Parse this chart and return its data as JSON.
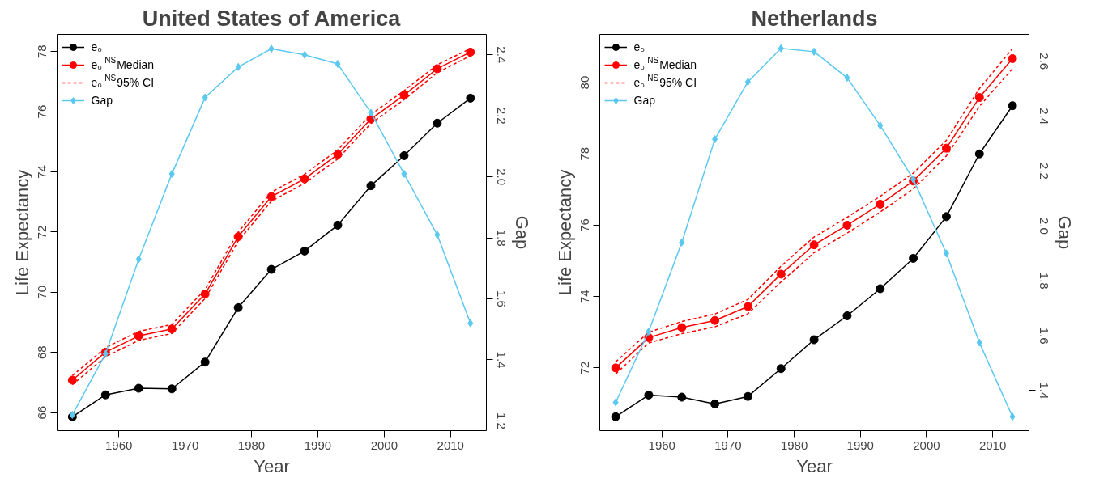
{
  "chart_data": [
    {
      "type": "line",
      "title": "United States of America",
      "xlabel": "Year",
      "ylabel": "Life Expectancy",
      "y2label": "Gap",
      "x": [
        1953,
        1958,
        1963,
        1968,
        1973,
        1978,
        1983,
        1988,
        1993,
        1998,
        2003,
        2008,
        2013
      ],
      "xlim": [
        1950.7,
        2015.4
      ],
      "xticks": [
        1960,
        1970,
        1980,
        1990,
        2000,
        2010
      ],
      "ylim": [
        65.4,
        78.57
      ],
      "yticks": [
        66,
        68,
        70,
        72,
        74,
        76,
        78
      ],
      "y2lim": [
        1.168,
        2.467
      ],
      "y2ticks": [
        {
          "value": 1.2,
          "label": "1.2"
        },
        {
          "value": 1.4,
          "label": "1.4"
        },
        {
          "value": 1.6,
          "label": "1.6"
        },
        {
          "value": 1.8,
          "label": "1.8"
        },
        {
          "value": 2.0,
          "label": "2.0"
        },
        {
          "value": 2.2,
          "label": "2.2"
        },
        {
          "value": 2.4,
          "label": "2.4"
        }
      ],
      "grid": false,
      "legend": "top left",
      "series": [
        {
          "name": "e₀",
          "color": "#000000",
          "marker": "circle",
          "line_style": "solid",
          "values": [
            65.86,
            66.59,
            66.81,
            66.79,
            67.68,
            69.49,
            70.76,
            71.37,
            72.23,
            73.54,
            74.54,
            75.62,
            76.45
          ]
        },
        {
          "name": "e₀$^{NS}$Median",
          "color": "#ff0000",
          "marker": "circle",
          "line_style": "solid",
          "values": [
            67.08,
            68.01,
            68.55,
            68.78,
            69.94,
            71.85,
            73.18,
            73.77,
            74.58,
            75.76,
            76.55,
            77.43,
            77.98
          ]
        },
        {
          "name": "e₀$^{NS}$95% CI",
          "color": "#ff0000",
          "marker": "none",
          "line_style": "dashed",
          "values": [
            66.93,
            67.86,
            68.4,
            68.63,
            69.79,
            71.7,
            73.03,
            73.62,
            74.43,
            75.61,
            76.4,
            77.3,
            77.86
          ]
        },
        {
          "color": "#ff0000",
          "marker": "none",
          "line_style": "dashed",
          "values": [
            67.23,
            68.16,
            68.7,
            68.93,
            70.09,
            72.0,
            73.33,
            73.92,
            74.73,
            75.91,
            76.7,
            77.56,
            78.1
          ]
        },
        {
          "name": "Gap",
          "color": "#5bc8f0",
          "marker": "diamond",
          "line_style": "solid",
          "axis": "y2",
          "values": [
            1.22,
            1.42,
            1.73,
            2.01,
            2.26,
            2.36,
            2.42,
            2.4,
            2.37,
            2.21,
            2.01,
            1.81,
            1.52
          ]
        }
      ]
    },
    {
      "type": "line",
      "title": "Netherlands",
      "xlabel": "Year",
      "ylabel": "Life Expectancy",
      "y2label": "Gap",
      "x": [
        1953,
        1958,
        1963,
        1968,
        1973,
        1978,
        1983,
        1988,
        1993,
        1998,
        2003,
        2008,
        2013
      ],
      "xlim": [
        1950.6,
        2015.5
      ],
      "xticks": [
        1960,
        1970,
        1980,
        1990,
        2000,
        2010
      ],
      "ylim": [
        70.24,
        81.35
      ],
      "yticks": [
        72,
        74,
        76,
        78,
        80
      ],
      "y2lim": [
        1.254,
        2.698
      ],
      "y2ticks": [
        1.4,
        1.6,
        1.8,
        {
          "value": 2.0,
          "label": "2.0"
        },
        2.2,
        2.4,
        2.6
      ],
      "grid": false,
      "legend": "top left",
      "series": [
        {
          "name": "e₀",
          "color": "#000000",
          "marker": "circle",
          "line_style": "solid",
          "values": [
            70.63,
            71.24,
            71.18,
            70.99,
            71.2,
            71.98,
            72.79,
            73.46,
            74.22,
            75.07,
            76.24,
            78.0,
            79.35
          ]
        },
        {
          "name": "e₀$^{NS}$Median",
          "color": "#ff0000",
          "marker": "circle",
          "line_style": "solid",
          "values": [
            72.0,
            72.85,
            73.13,
            73.33,
            73.72,
            74.63,
            75.45,
            76.0,
            76.59,
            77.24,
            78.16,
            79.58,
            80.67
          ]
        },
        {
          "name": "e₀$^{NS}$95% CI",
          "color": "#ff0000",
          "marker": "none",
          "line_style": "dashed",
          "values": [
            71.83,
            72.7,
            72.96,
            73.15,
            73.52,
            74.41,
            75.23,
            75.78,
            76.37,
            77.02,
            77.94,
            79.33,
            80.39
          ]
        },
        {
          "color": "#ff0000",
          "marker": "none",
          "line_style": "dashed",
          "values": [
            72.17,
            73.0,
            73.3,
            73.51,
            73.92,
            74.85,
            75.67,
            76.22,
            76.81,
            77.46,
            78.38,
            79.83,
            80.95
          ]
        },
        {
          "name": "Gap",
          "color": "#5bc8f0",
          "marker": "diamond",
          "line_style": "solid",
          "axis": "y2",
          "values": [
            1.357,
            1.615,
            1.94,
            2.316,
            2.525,
            2.647,
            2.635,
            2.54,
            2.366,
            2.17,
            1.9,
            1.575,
            1.305
          ]
        }
      ]
    }
  ]
}
